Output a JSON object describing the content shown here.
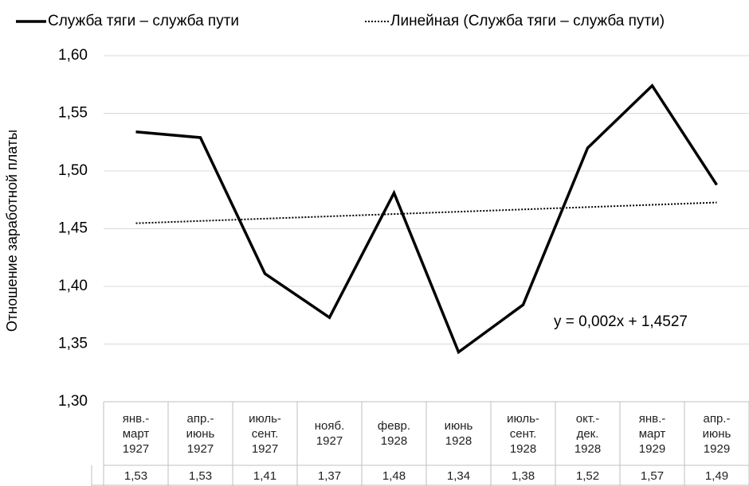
{
  "chart_data": {
    "type": "line",
    "y_label": "Отношение заработной платы",
    "annotation": "y = 0,002x + 1,4527",
    "categories": [
      "янв.-\nмарт\n1927",
      "апр.-\nиюнь\n1927",
      "июль-\nсент.\n1927",
      "нояб.\n1927",
      "февр.\n1928",
      "июнь\n1928",
      "июль-\nсент.\n1928",
      "окт.-\nдек.\n1928",
      "янв.-\nмарт\n1929",
      "апр.-\nиюнь\n1929"
    ],
    "series": [
      {
        "name": "Служба тяги – служба пути",
        "color": "#000000",
        "style": "solid",
        "values": [
          1.534,
          1.529,
          1.411,
          1.373,
          1.481,
          1.343,
          1.384,
          1.52,
          1.574,
          1.488
        ],
        "value_labels": [
          "1,53",
          "1,53",
          "1,41",
          "1,37",
          "1,48",
          "1,34",
          "1,38",
          "1,52",
          "1,57",
          "1,49"
        ]
      },
      {
        "name": "Линейная (Служба тяги – служба пути)",
        "color": "#000000",
        "style": "dotted",
        "values": [
          1.4547,
          1.4567,
          1.4587,
          1.4607,
          1.4627,
          1.4647,
          1.4667,
          1.4687,
          1.4707,
          1.4727
        ]
      }
    ],
    "ylim": [
      1.3,
      1.6
    ],
    "yticks": [
      {
        "value": 1.3,
        "label": "1,30"
      },
      {
        "value": 1.35,
        "label": "1,35"
      },
      {
        "value": 1.4,
        "label": "1,40"
      },
      {
        "value": 1.45,
        "label": "1,45"
      },
      {
        "value": 1.5,
        "label": "1,50"
      },
      {
        "value": 1.55,
        "label": "1,55"
      },
      {
        "value": 1.6,
        "label": "1,60"
      }
    ],
    "grid": true,
    "legend": "top"
  }
}
